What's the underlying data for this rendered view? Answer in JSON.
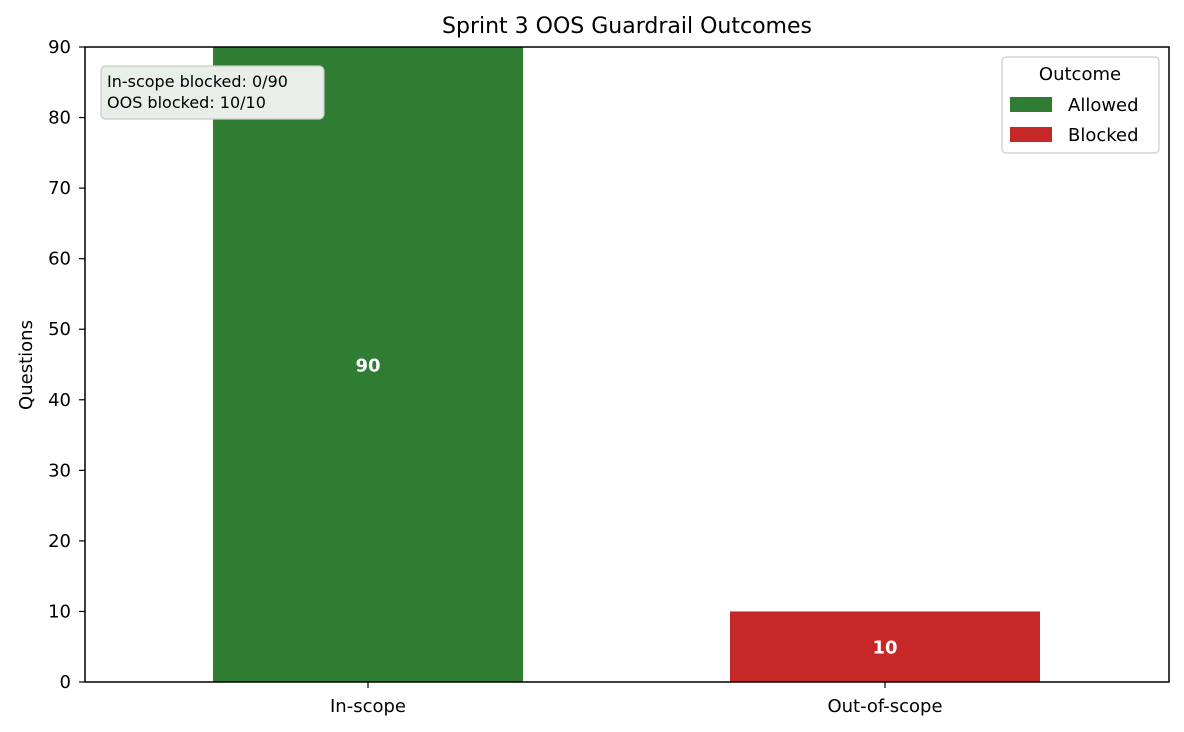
{
  "chart_data": {
    "type": "bar",
    "title": "Sprint 3 OOS Guardrail Outcomes",
    "xlabel": "",
    "ylabel": "Questions",
    "categories": [
      "In-scope",
      "Out-of-scope"
    ],
    "series": [
      {
        "name": "Allowed",
        "values": [
          90,
          0
        ],
        "color": "#2e7d32"
      },
      {
        "name": "Blocked",
        "values": [
          0,
          10
        ],
        "color": "#c62828"
      }
    ],
    "bar_labels": [
      "90",
      "10"
    ],
    "ylim": [
      0,
      90
    ],
    "yticks": [
      0,
      10,
      20,
      30,
      40,
      50,
      60,
      70,
      80,
      90
    ],
    "grid": false,
    "stacked": true,
    "legend": {
      "title": "Outcome",
      "position": "top-right"
    },
    "annotation": {
      "position": "top-left",
      "lines": [
        "In-scope blocked: 0/90",
        "OOS blocked: 10/10"
      ]
    }
  }
}
